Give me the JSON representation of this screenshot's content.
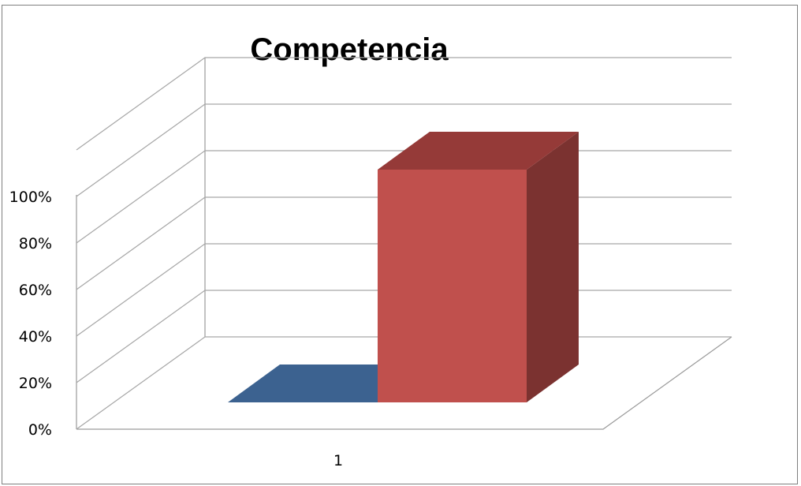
{
  "chart_data": {
    "type": "bar",
    "title": "Competencia",
    "categories": [
      "1"
    ],
    "series": [
      {
        "values": [
          0
        ],
        "color": "#3c6290"
      },
      {
        "values": [
          100
        ],
        "color": "#c0504d"
      }
    ],
    "yticks": [
      "0%",
      "20%",
      "40%",
      "60%",
      "80%",
      "100%"
    ],
    "ylim": [
      0,
      100
    ],
    "style": "3d-column",
    "grid": true,
    "legend": "none"
  }
}
